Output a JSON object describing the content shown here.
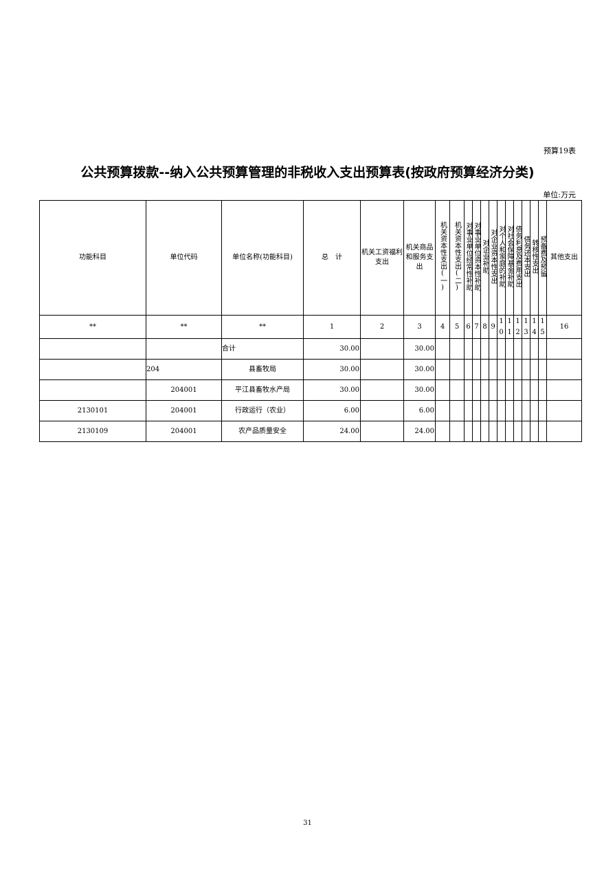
{
  "table_number": "预算19表",
  "title": "公共预算拨款--纳入公共预算管理的非税收入支出预算表(按政府预算经济分类)",
  "unit": "单位:万元",
  "headers": [
    "功能科目",
    "单位代码",
    "单位名称(功能科目)",
    "总　计",
    "机关工资福利支出",
    "机关商品和服务支出",
    "机关资本性支出(一)",
    "机关资本性支出(二)",
    "对事业单位经常性补助",
    "对事业单位资本性补助",
    "对企业补助",
    "对企业资本性支出",
    "对个人和家庭的补助",
    "对社会保障基金补助",
    "债务利息及费用支出",
    "债务还本支出",
    "转移性支出",
    "预备费及预留",
    "其他支出"
  ],
  "numbers": [
    "**",
    "**",
    "**",
    "1",
    "2",
    "3",
    "4",
    "5",
    "6",
    "7",
    "8",
    "9",
    "10",
    "11",
    "12",
    "13",
    "14",
    "15",
    "16"
  ],
  "rows": [
    {
      "func": "",
      "code": "",
      "name": "合计",
      "total": "30.00",
      "c3": "30.00"
    },
    {
      "func": "",
      "code": "204",
      "name": "县畜牧局",
      "total": "30.00",
      "c3": "30.00"
    },
    {
      "func": "",
      "code": "204001",
      "name": "平江县畜牧水产局",
      "total": "30.00",
      "c3": "30.00"
    },
    {
      "func": "2130101",
      "code": "204001",
      "name": "行政运行（农业）",
      "total": "6.00",
      "c3": "6.00"
    },
    {
      "func": "2130109",
      "code": "204001",
      "name": "农产品质量安全",
      "total": "24.00",
      "c3": "24.00"
    }
  ],
  "page_number": "31"
}
